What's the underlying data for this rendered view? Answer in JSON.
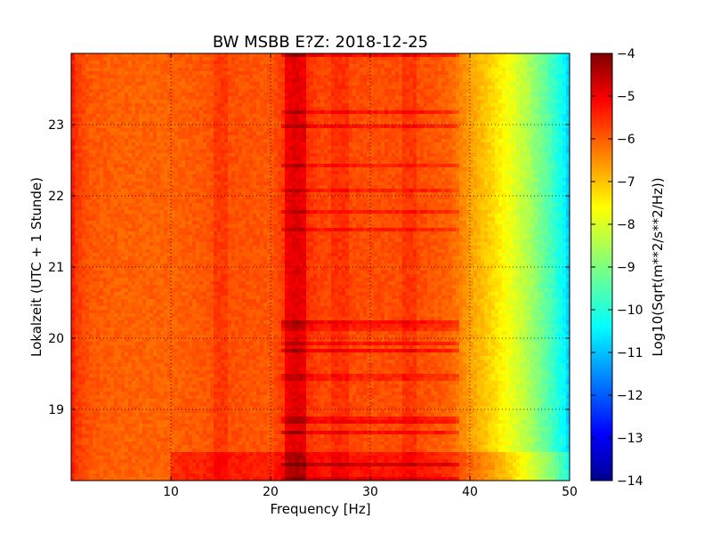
{
  "chart_data": {
    "type": "heatmap",
    "title": "BW MSBB E?Z: 2018-12-25",
    "xlabel": "Frequency [Hz]",
    "ylabel": "Lokalzeit (UTC + 1 Stunde)",
    "xlim": [
      0,
      50
    ],
    "ylim": [
      24,
      18
    ],
    "xticks": [
      10,
      20,
      30,
      40,
      50
    ],
    "yticks": [
      19,
      20,
      21,
      22,
      23
    ],
    "grid": true,
    "colorbar": {
      "label": "Log10(Sqrt(m**2/s**2/Hz))",
      "range": [
        -14,
        -4
      ],
      "ticks": [
        -4,
        -5,
        -6,
        -7,
        -8,
        -9,
        -10,
        -11,
        -12,
        -13,
        -14
      ],
      "colormap": "jet"
    },
    "value_profile": {
      "frequency_hz": [
        0,
        0.5,
        2,
        5,
        10,
        13,
        15,
        20,
        22.5,
        25,
        30,
        35,
        38,
        40,
        42,
        44,
        46,
        48,
        49.5,
        50
      ],
      "level": [
        -5.4,
        -5.8,
        -6.1,
        -6.2,
        -6.2,
        -6.1,
        -6.0,
        -6.1,
        -5.5,
        -5.9,
        -6.0,
        -6.0,
        -6.2,
        -6.8,
        -7.3,
        -7.9,
        -8.6,
        -9.5,
        -10.3,
        -10.8
      ]
    },
    "features": {
      "strong_band_hz": 22.5,
      "secondary_bands_hz": [
        15,
        27,
        34
      ],
      "early_hour_end": 18.38
    }
  }
}
